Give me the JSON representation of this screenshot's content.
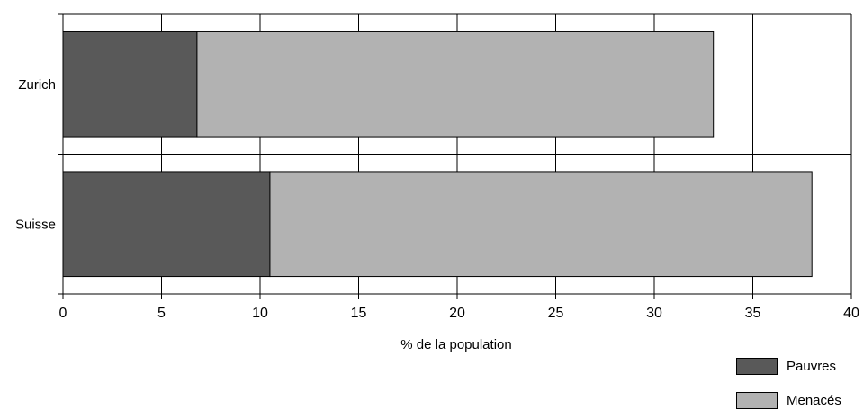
{
  "chart_data": {
    "type": "bar",
    "orientation": "horizontal",
    "stacked": true,
    "categories": [
      "Zurich",
      "Suisse"
    ],
    "series": [
      {
        "name": "Pauvres",
        "values": [
          6.8,
          10.5
        ],
        "color": "#595959"
      },
      {
        "name": "Menacés",
        "values": [
          26.2,
          27.5
        ],
        "color": "#b2b2b2"
      }
    ],
    "xlabel": "% de la population",
    "ylabel": "",
    "title": "",
    "xlim": [
      0,
      40
    ],
    "xticks": [
      "0",
      "5",
      "10",
      "15",
      "20",
      "25",
      "30",
      "35",
      "40"
    ],
    "grid": true,
    "legend_position": "bottom-right"
  }
}
